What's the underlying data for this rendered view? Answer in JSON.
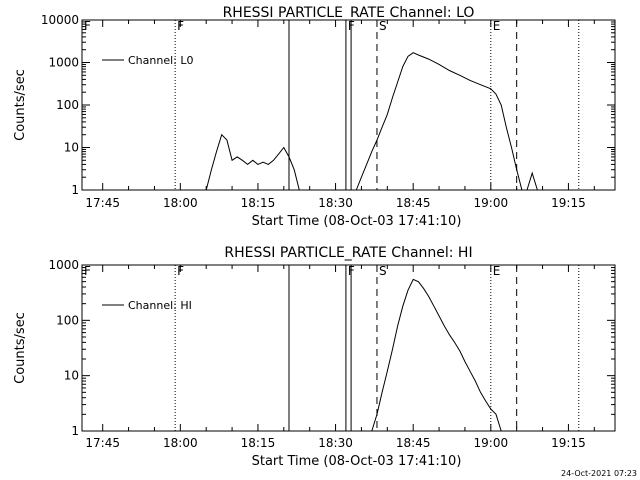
{
  "chart_data": [
    {
      "type": "line",
      "title": "RHESSI PARTICLE_RATE Channel: LO",
      "xlabel": "Start Time (08-Oct-03 17:41:10)",
      "ylabel": "Counts/sec",
      "yscale": "log",
      "xlim": [
        "17:41",
        "19:24"
      ],
      "ylim": [
        1,
        10000
      ],
      "xticks": [
        "17:45",
        "18:00",
        "18:15",
        "18:30",
        "18:45",
        "19:00",
        "19:15"
      ],
      "yticks": [
        "1",
        "10",
        "100",
        "1000",
        "10000"
      ],
      "legend": "Channel: L0",
      "legend_position": "top-left",
      "markers": [
        {
          "label": "F",
          "time": "17:41",
          "style": "solid"
        },
        {
          "label": "F",
          "time": "17:59",
          "style": "dotted"
        },
        {
          "label": "",
          "time": "18:21",
          "style": "solid"
        },
        {
          "label": "F",
          "time": "18:32",
          "style": "solid"
        },
        {
          "label": "",
          "time": "18:33",
          "style": "solid"
        },
        {
          "label": "S",
          "time": "18:38",
          "style": "dashed"
        },
        {
          "label": "E",
          "time": "19:00",
          "style": "dotted"
        },
        {
          "label": "",
          "time": "19:05",
          "style": "dashed"
        },
        {
          "label": "",
          "time": "19:17",
          "style": "dotted"
        }
      ],
      "series": [
        {
          "name": "Channel: L0",
          "segments": [
            [
              [
                "18:05",
                1
              ],
              [
                "18:06",
                3
              ],
              [
                "18:07",
                8
              ],
              [
                "18:08",
                20
              ],
              [
                "18:09",
                15
              ],
              [
                "18:10",
                5
              ],
              [
                "18:11",
                6
              ],
              [
                "18:12",
                5
              ],
              [
                "18:13",
                4
              ],
              [
                "18:14",
                5
              ],
              [
                "18:15",
                4
              ],
              [
                "18:16",
                4.5
              ],
              [
                "18:17",
                4
              ],
              [
                "18:18",
                5
              ],
              [
                "18:19",
                7
              ],
              [
                "18:20",
                10
              ],
              [
                "18:21",
                6
              ],
              [
                "18:22",
                3
              ],
              [
                "18:23",
                1
              ]
            ],
            [
              [
                "18:34",
                1
              ],
              [
                "18:35",
                2
              ],
              [
                "18:36",
                4
              ],
              [
                "18:37",
                8
              ],
              [
                "18:38",
                15
              ],
              [
                "18:39",
                30
              ],
              [
                "18:40",
                60
              ],
              [
                "18:41",
                150
              ],
              [
                "18:42",
                350
              ],
              [
                "18:43",
                800
              ],
              [
                "18:44",
                1400
              ],
              [
                "18:45",
                1700
              ],
              [
                "18:46",
                1500
              ],
              [
                "18:48",
                1200
              ],
              [
                "18:50",
                900
              ],
              [
                "18:52",
                650
              ],
              [
                "18:54",
                500
              ],
              [
                "18:56",
                380
              ],
              [
                "18:58",
                300
              ],
              [
                "19:00",
                240
              ],
              [
                "19:01",
                180
              ],
              [
                "19:02",
                100
              ],
              [
                "19:03",
                30
              ],
              [
                "19:04",
                10
              ],
              [
                "19:05",
                3
              ],
              [
                "19:06",
                1
              ]
            ],
            [
              [
                "19:07",
                1
              ],
              [
                "19:08",
                2.5
              ],
              [
                "19:09",
                1
              ]
            ]
          ]
        }
      ]
    },
    {
      "type": "line",
      "title": "RHESSI PARTICLE_RATE Channel: HI",
      "xlabel": "Start Time (08-Oct-03 17:41:10)",
      "ylabel": "Counts/sec",
      "yscale": "log",
      "xlim": [
        "17:41",
        "19:24"
      ],
      "ylim": [
        1,
        1000
      ],
      "xticks": [
        "17:45",
        "18:00",
        "18:15",
        "18:30",
        "18:45",
        "19:00",
        "19:15"
      ],
      "yticks": [
        "1",
        "10",
        "100",
        "1000"
      ],
      "legend": "Channel: HI",
      "legend_position": "top-left",
      "markers": [
        {
          "label": "F",
          "time": "17:41",
          "style": "solid"
        },
        {
          "label": "F",
          "time": "17:59",
          "style": "dotted"
        },
        {
          "label": "",
          "time": "18:21",
          "style": "solid"
        },
        {
          "label": "F",
          "time": "18:32",
          "style": "solid"
        },
        {
          "label": "",
          "time": "18:33",
          "style": "solid"
        },
        {
          "label": "S",
          "time": "18:38",
          "style": "dashed"
        },
        {
          "label": "E",
          "time": "19:00",
          "style": "dotted"
        },
        {
          "label": "",
          "time": "19:05",
          "style": "dashed"
        },
        {
          "label": "",
          "time": "19:17",
          "style": "dotted"
        }
      ],
      "series": [
        {
          "name": "Channel: HI",
          "segments": [
            [
              [
                "18:37",
                1
              ],
              [
                "18:38",
                2
              ],
              [
                "18:39",
                5
              ],
              [
                "18:40",
                12
              ],
              [
                "18:41",
                30
              ],
              [
                "18:42",
                80
              ],
              [
                "18:43",
                180
              ],
              [
                "18:44",
                350
              ],
              [
                "18:45",
                550
              ],
              [
                "18:46",
                500
              ],
              [
                "18:47",
                380
              ],
              [
                "18:48",
                270
              ],
              [
                "18:49",
                180
              ],
              [
                "18:50",
                120
              ],
              [
                "18:51",
                80
              ],
              [
                "18:52",
                55
              ],
              [
                "18:53",
                40
              ],
              [
                "18:54",
                28
              ],
              [
                "18:55",
                18
              ],
              [
                "18:56",
                12
              ],
              [
                "18:57",
                8
              ],
              [
                "18:58",
                5
              ],
              [
                "18:59",
                3.5
              ],
              [
                "19:00",
                2.5
              ],
              [
                "19:01",
                2
              ],
              [
                "19:02",
                1
              ]
            ]
          ]
        }
      ]
    }
  ],
  "footer": {
    "timestamp": "24-Oct-2021 07:23"
  }
}
